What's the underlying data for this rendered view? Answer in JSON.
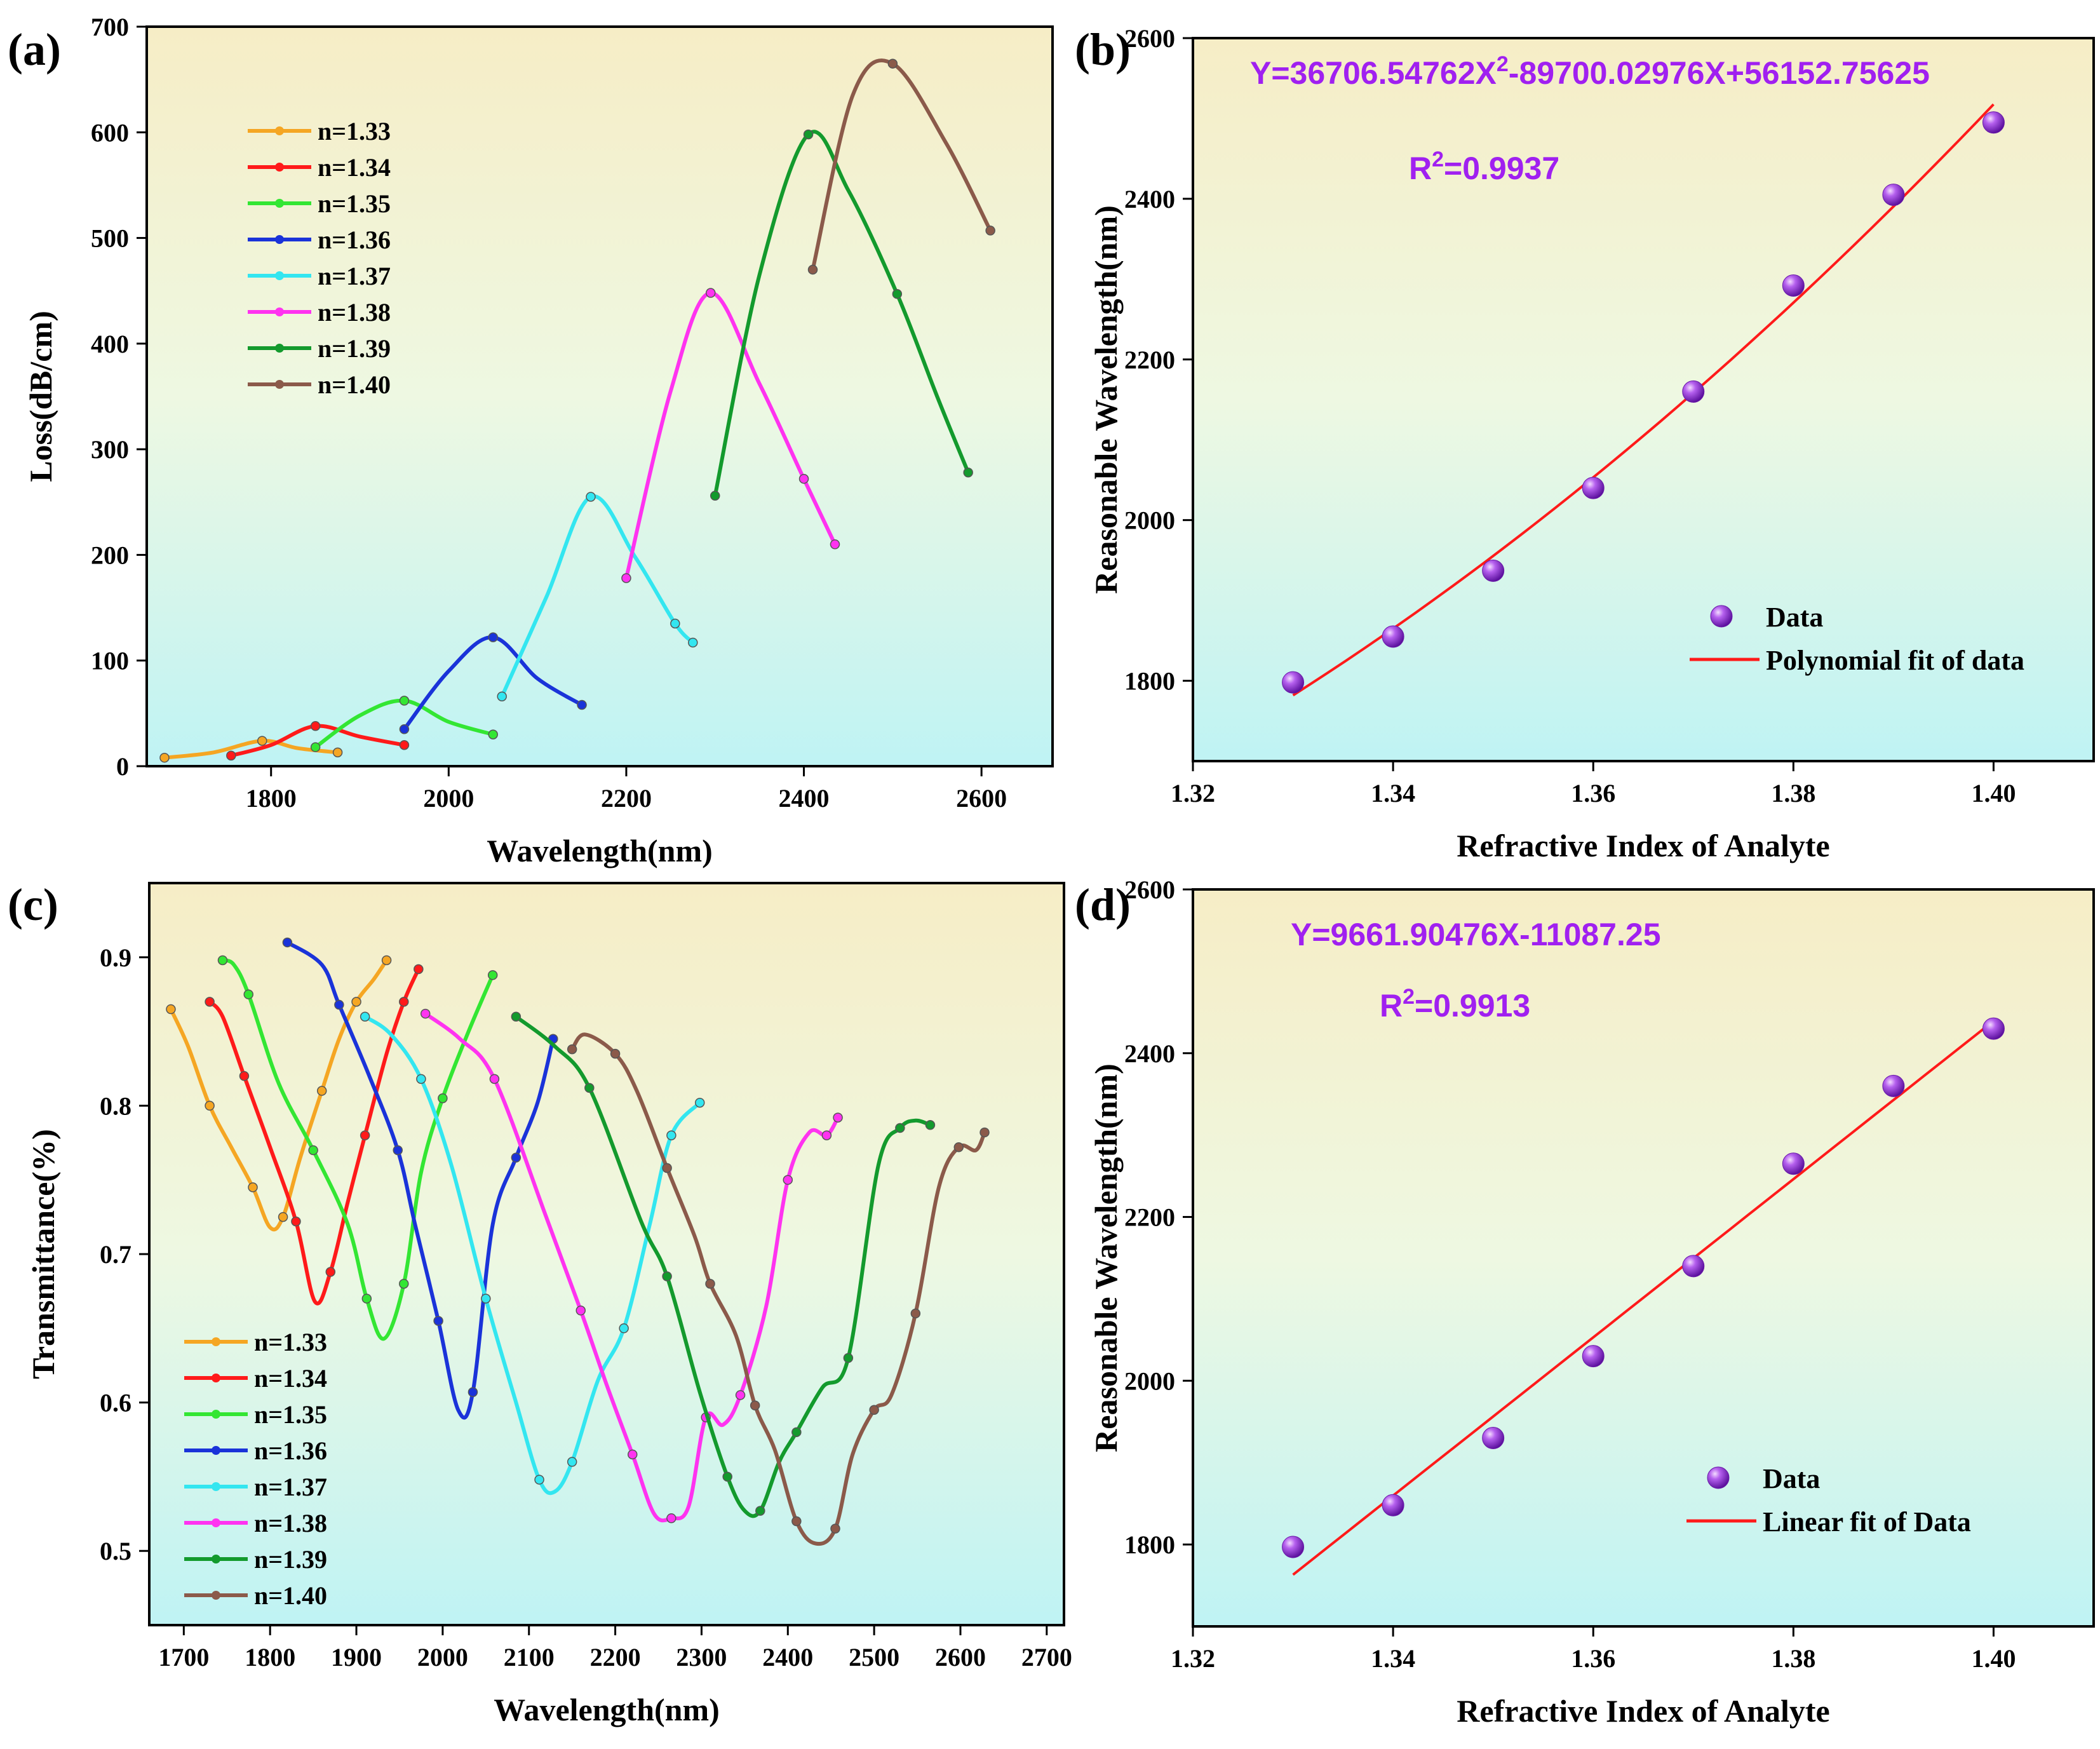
{
  "chart_data": [
    {
      "id": "a",
      "panel_label": "(a)",
      "type": "line",
      "title": "",
      "xlabel": "Wavelength(nm)",
      "ylabel": "Loss(dB/cm)",
      "xlim": [
        1660,
        2680
      ],
      "ylim": [
        0,
        700
      ],
      "xticks": [
        "1800",
        "2000",
        "2200",
        "2400",
        "2600"
      ],
      "xtick_values": [
        1800,
        2000,
        2200,
        2400,
        2600
      ],
      "yticks": [
        "0",
        "100",
        "200",
        "300",
        "400",
        "500",
        "600",
        "700"
      ],
      "ytick_values": [
        0,
        100,
        200,
        300,
        400,
        500,
        600,
        700
      ],
      "legend_position": "top-left",
      "series": [
        {
          "name": "n=1.33",
          "color": "#f5a623",
          "x": [
            1680,
            1735,
            1790,
            1830,
            1875
          ],
          "y": [
            8,
            13,
            24,
            17,
            13
          ]
        },
        {
          "name": "n=1.34",
          "color": "#ff1a1a",
          "x": [
            1755,
            1800,
            1850,
            1900,
            1950
          ],
          "y": [
            10,
            20,
            38,
            28,
            20
          ]
        },
        {
          "name": "n=1.35",
          "color": "#33e633",
          "x": [
            1850,
            1900,
            1950,
            2000,
            2050
          ],
          "y": [
            18,
            48,
            62,
            42,
            30
          ]
        },
        {
          "name": "n=1.36",
          "color": "#1a33d9",
          "x": [
            1950,
            2000,
            2050,
            2100,
            2150
          ],
          "y": [
            35,
            90,
            122,
            83,
            58
          ]
        },
        {
          "name": "n=1.37",
          "color": "#33e6f0",
          "x": [
            2060,
            2110,
            2160,
            2210,
            2255,
            2275
          ],
          "y": [
            66,
            160,
            255,
            198,
            135,
            117
          ]
        },
        {
          "name": "n=1.38",
          "color": "#ff33f0",
          "x": [
            2200,
            2250,
            2295,
            2350,
            2400,
            2435
          ],
          "y": [
            178,
            355,
            448,
            362,
            272,
            210
          ]
        },
        {
          "name": "n=1.39",
          "color": "#139a2d",
          "x": [
            2300,
            2350,
            2405,
            2450,
            2505,
            2550,
            2585
          ],
          "y": [
            256,
            465,
            598,
            545,
            447,
            350,
            278
          ]
        },
        {
          "name": "n=1.40",
          "color": "#8b5a4a",
          "x": [
            2410,
            2455,
            2500,
            2560,
            2610
          ],
          "y": [
            470,
            635,
            665,
            590,
            507
          ]
        }
      ]
    },
    {
      "id": "b",
      "panel_label": "(b)",
      "type": "scatter",
      "title": "",
      "equation": "Y=36706.54762X",
      "equation_sup": "2",
      "equation_tail": "-89700.02976X+56152.75625",
      "r2_prefix": "R",
      "r2_sup": "2",
      "r2_value": "=0.9937",
      "xlabel": "Refractive Index of Analyte",
      "ylabel": "Reasonable Wavelength(nm)",
      "xlim": [
        1.32,
        1.41
      ],
      "ylim": [
        1700,
        2600
      ],
      "xticks": [
        "1.32",
        "1.34",
        "1.36",
        "1.38",
        "1.40"
      ],
      "xtick_values": [
        1.32,
        1.34,
        1.36,
        1.38,
        1.4
      ],
      "yticks": [
        "1800",
        "2000",
        "2200",
        "2400",
        "2600"
      ],
      "ytick_values": [
        1800,
        2000,
        2200,
        2400,
        2600
      ],
      "fit": "poly2",
      "fit_coeffs": [
        36706.54762,
        -89700.02976,
        56152.75625
      ],
      "legend": [
        "Data",
        "Polynomial fit of data"
      ],
      "legend_position": "bottom-right",
      "series": [
        {
          "name": "Data",
          "color": "#9b3de0",
          "x": [
            1.33,
            1.34,
            1.35,
            1.36,
            1.37,
            1.38,
            1.39,
            1.4
          ],
          "y": [
            1798,
            1855,
            1937,
            2040,
            2160,
            2292,
            2405,
            2495
          ]
        }
      ]
    },
    {
      "id": "c",
      "panel_label": "(c)",
      "type": "line",
      "title": "",
      "xlabel": "Wavelength(nm)",
      "ylabel": "Transmittance(%)",
      "xlim": [
        1660,
        2720
      ],
      "ylim": [
        0.45,
        0.95
      ],
      "xticks": [
        "1700",
        "1800",
        "1900",
        "2000",
        "2100",
        "2200",
        "2300",
        "2400",
        "2500",
        "2600",
        "2700"
      ],
      "xtick_values": [
        1700,
        1800,
        1900,
        2000,
        2100,
        2200,
        2300,
        2400,
        2500,
        2600,
        2700
      ],
      "yticks": [
        "0.5",
        "0.6",
        "0.7",
        "0.8",
        "0.9"
      ],
      "ytick_values": [
        0.5,
        0.6,
        0.7,
        0.8,
        0.9
      ],
      "legend_position": "bottom-left",
      "series": [
        {
          "name": "n=1.33",
          "color": "#f5a623",
          "x": [
            1685,
            1705,
            1730,
            1755,
            1780,
            1800,
            1815,
            1835,
            1860,
            1880,
            1900,
            1920,
            1935
          ],
          "y": [
            0.865,
            0.84,
            0.8,
            0.772,
            0.745,
            0.718,
            0.725,
            0.765,
            0.81,
            0.845,
            0.87,
            0.885,
            0.898
          ]
        },
        {
          "name": "n=1.34",
          "color": "#ff1a1a",
          "x": [
            1730,
            1745,
            1770,
            1800,
            1830,
            1852,
            1870,
            1890,
            1910,
            1935,
            1955,
            1972
          ],
          "y": [
            0.87,
            0.86,
            0.82,
            0.772,
            0.722,
            0.668,
            0.688,
            0.735,
            0.78,
            0.835,
            0.87,
            0.892
          ]
        },
        {
          "name": "n=1.35",
          "color": "#33e633",
          "x": [
            1745,
            1758,
            1775,
            1810,
            1850,
            1890,
            1912,
            1932,
            1955,
            1975,
            2000,
            2030,
            2058
          ],
          "y": [
            0.898,
            0.895,
            0.875,
            0.815,
            0.77,
            0.72,
            0.67,
            0.643,
            0.68,
            0.755,
            0.805,
            0.85,
            0.888
          ]
        },
        {
          "name": "n=1.36",
          "color": "#1a33d9",
          "x": [
            1820,
            1860,
            1880,
            1915,
            1948,
            1968,
            1995,
            2018,
            2035,
            2058,
            2085,
            2110,
            2128
          ],
          "y": [
            0.91,
            0.895,
            0.868,
            0.82,
            0.77,
            0.72,
            0.655,
            0.595,
            0.607,
            0.72,
            0.765,
            0.802,
            0.845
          ]
        },
        {
          "name": "n=1.37",
          "color": "#33e6f0",
          "x": [
            1910,
            1940,
            1975,
            2010,
            2050,
            2085,
            2112,
            2130,
            2150,
            2180,
            2210,
            2240,
            2265,
            2298
          ],
          "y": [
            0.86,
            0.848,
            0.818,
            0.76,
            0.67,
            0.6,
            0.548,
            0.54,
            0.56,
            0.615,
            0.65,
            0.72,
            0.78,
            0.802
          ]
        },
        {
          "name": "n=1.38",
          "color": "#ff33f0",
          "x": [
            1980,
            2020,
            2060,
            2120,
            2160,
            2190,
            2220,
            2245,
            2265,
            2285,
            2305,
            2325,
            2345,
            2375,
            2400,
            2425,
            2445,
            2458
          ],
          "y": [
            0.862,
            0.845,
            0.818,
            0.725,
            0.662,
            0.612,
            0.565,
            0.525,
            0.522,
            0.53,
            0.59,
            0.585,
            0.605,
            0.665,
            0.75,
            0.782,
            0.78,
            0.792
          ]
        },
        {
          "name": "n=1.39",
          "color": "#139a2d",
          "x": [
            2085,
            2130,
            2170,
            2230,
            2260,
            2298,
            2330,
            2350,
            2368,
            2390,
            2410,
            2440,
            2470,
            2505,
            2530,
            2548,
            2565
          ],
          "y": [
            0.86,
            0.84,
            0.812,
            0.722,
            0.685,
            0.607,
            0.55,
            0.527,
            0.527,
            0.56,
            0.58,
            0.61,
            0.63,
            0.76,
            0.785,
            0.79,
            0.787
          ]
        },
        {
          "name": "n=1.40",
          "color": "#8b5a4a",
          "x": [
            2150,
            2165,
            2200,
            2225,
            2260,
            2292,
            2310,
            2340,
            2362,
            2385,
            2410,
            2432,
            2455,
            2475,
            2500,
            2520,
            2548,
            2575,
            2598,
            2618,
            2628
          ],
          "y": [
            0.838,
            0.848,
            0.835,
            0.81,
            0.758,
            0.712,
            0.68,
            0.645,
            0.598,
            0.568,
            0.52,
            0.505,
            0.515,
            0.565,
            0.595,
            0.605,
            0.66,
            0.745,
            0.772,
            0.77,
            0.782
          ]
        }
      ]
    },
    {
      "id": "d",
      "panel_label": "(d)",
      "type": "scatter",
      "title": "",
      "equation": "Y=9661.90476X-11087.25",
      "equation_sup": "",
      "equation_tail": "",
      "r2_prefix": "R",
      "r2_sup": "2",
      "r2_value": "=0.9913",
      "xlabel": "Refractive Index of Analyte",
      "ylabel": "Reasonable Wavelength(nm)",
      "xlim": [
        1.32,
        1.41
      ],
      "ylim": [
        1700,
        2600
      ],
      "xticks": [
        "1.32",
        "1.34",
        "1.36",
        "1.38",
        "1.40"
      ],
      "xtick_values": [
        1.32,
        1.34,
        1.36,
        1.38,
        1.4
      ],
      "yticks": [
        "1800",
        "2000",
        "2200",
        "2400",
        "2600"
      ],
      "ytick_values": [
        1800,
        2000,
        2200,
        2400,
        2600
      ],
      "fit": "linear",
      "fit_coeffs": [
        9661.90476,
        -11087.25
      ],
      "legend": [
        "Data",
        "Linear fit of Data"
      ],
      "legend_position": "bottom-right",
      "series": [
        {
          "name": "Data",
          "color": "#9b3de0",
          "x": [
            1.33,
            1.34,
            1.35,
            1.36,
            1.37,
            1.38,
            1.39,
            1.4
          ],
          "y": [
            1797,
            1848,
            1930,
            2030,
            2140,
            2265,
            2360,
            2430
          ]
        }
      ]
    }
  ],
  "colors": {
    "fit_line": "#ff1a1a",
    "annotation": "#a020f0",
    "bg_top": "#f6edc6",
    "bg_mid": "#eef8e2",
    "bg_bottom": "#bff3f4"
  }
}
